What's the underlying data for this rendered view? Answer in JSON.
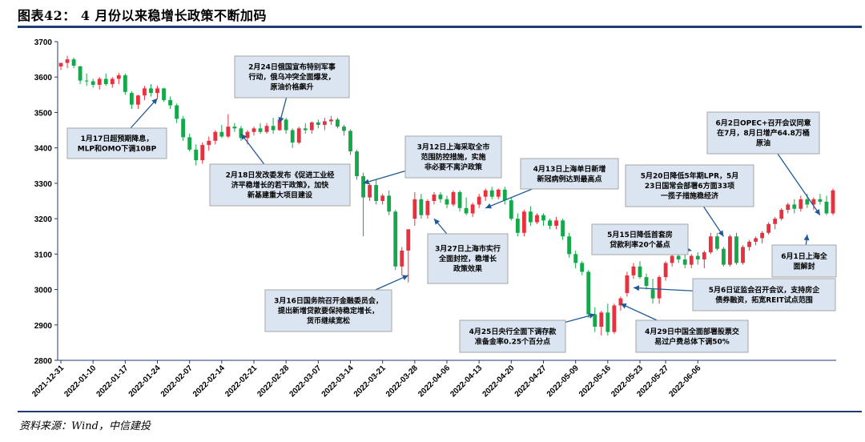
{
  "header": {
    "title": "图表42：  4 月份以来稳增长政策不断加码"
  },
  "footer": {
    "source": "资料来源：Wind，中信建投"
  },
  "colors": {
    "up": "#e8313f",
    "down": "#15a84a",
    "axis": "#1f3b73",
    "annotation_fill": "#dbe5f1",
    "arrow": "#1f5a96"
  },
  "chart_data": {
    "type": "candlestick",
    "ylim": [
      2800,
      3700
    ],
    "yticks": [
      2800,
      2900,
      3000,
      3100,
      3200,
      3300,
      3400,
      3500,
      3600,
      3700
    ],
    "grid": false,
    "xlabels": [
      "2021-12-31",
      "2022-01-10",
      "2022-01-17",
      "2022-01-24",
      "2022-02-07",
      "2022-02-14",
      "2022-02-21",
      "2022-02-28",
      "2022-03-07",
      "2022-03-14",
      "2022-03-21",
      "2022-03-28",
      "2022-04-06",
      "2022-04-13",
      "2022-04-20",
      "2022-04-27",
      "2022-05-09",
      "2022-05-16",
      "2022-05-23",
      "2022-05-27",
      "2022-06-06"
    ],
    "xlabel_index": [
      0,
      5,
      10,
      15,
      20,
      25,
      30,
      35,
      40,
      45,
      50,
      55,
      60,
      65,
      70,
      75,
      80,
      85,
      90,
      94,
      99
    ],
    "candles": [
      {
        "o": 3630,
        "h": 3640,
        "l": 3620,
        "c": 3640
      },
      {
        "o": 3640,
        "h": 3660,
        "l": 3625,
        "c": 3650
      },
      {
        "o": 3650,
        "h": 3655,
        "l": 3625,
        "c": 3632
      },
      {
        "o": 3630,
        "h": 3632,
        "l": 3580,
        "c": 3590
      },
      {
        "o": 3590,
        "h": 3610,
        "l": 3575,
        "c": 3588
      },
      {
        "o": 3588,
        "h": 3595,
        "l": 3570,
        "c": 3578
      },
      {
        "o": 3578,
        "h": 3600,
        "l": 3565,
        "c": 3595
      },
      {
        "o": 3595,
        "h": 3610,
        "l": 3575,
        "c": 3580
      },
      {
        "o": 3580,
        "h": 3600,
        "l": 3570,
        "c": 3595
      },
      {
        "o": 3595,
        "h": 3612,
        "l": 3580,
        "c": 3605
      },
      {
        "o": 3605,
        "h": 3610,
        "l": 3550,
        "c": 3558
      },
      {
        "o": 3555,
        "h": 3560,
        "l": 3510,
        "c": 3522
      },
      {
        "o": 3522,
        "h": 3550,
        "l": 3510,
        "c": 3548
      },
      {
        "o": 3548,
        "h": 3575,
        "l": 3535,
        "c": 3568
      },
      {
        "o": 3568,
        "h": 3580,
        "l": 3545,
        "c": 3555
      },
      {
        "o": 3555,
        "h": 3575,
        "l": 3540,
        "c": 3568
      },
      {
        "o": 3568,
        "h": 3570,
        "l": 3530,
        "c": 3535
      },
      {
        "o": 3535,
        "h": 3545,
        "l": 3510,
        "c": 3520
      },
      {
        "o": 3520,
        "h": 3525,
        "l": 3470,
        "c": 3482
      },
      {
        "o": 3482,
        "h": 3490,
        "l": 3420,
        "c": 3430
      },
      {
        "o": 3430,
        "h": 3440,
        "l": 3390,
        "c": 3395
      },
      {
        "o": 3395,
        "h": 3410,
        "l": 3350,
        "c": 3365
      },
      {
        "o": 3365,
        "h": 3415,
        "l": 3355,
        "c": 3408
      },
      {
        "o": 3408,
        "h": 3432,
        "l": 3392,
        "c": 3420
      },
      {
        "o": 3420,
        "h": 3450,
        "l": 3410,
        "c": 3445
      },
      {
        "o": 3445,
        "h": 3465,
        "l": 3428,
        "c": 3432
      },
      {
        "o": 3432,
        "h": 3495,
        "l": 3428,
        "c": 3460
      },
      {
        "o": 3460,
        "h": 3470,
        "l": 3445,
        "c": 3455
      },
      {
        "o": 3455,
        "h": 3462,
        "l": 3420,
        "c": 3428
      },
      {
        "o": 3428,
        "h": 3450,
        "l": 3410,
        "c": 3445
      },
      {
        "o": 3445,
        "h": 3460,
        "l": 3435,
        "c": 3455
      },
      {
        "o": 3455,
        "h": 3470,
        "l": 3440,
        "c": 3445
      },
      {
        "o": 3445,
        "h": 3470,
        "l": 3440,
        "c": 3462
      },
      {
        "o": 3462,
        "h": 3485,
        "l": 3440,
        "c": 3450
      },
      {
        "o": 3450,
        "h": 3485,
        "l": 3448,
        "c": 3480
      },
      {
        "o": 3480,
        "h": 3485,
        "l": 3440,
        "c": 3450
      },
      {
        "o": 3450,
        "h": 3455,
        "l": 3400,
        "c": 3415
      },
      {
        "o": 3415,
        "h": 3460,
        "l": 3410,
        "c": 3455
      },
      {
        "o": 3455,
        "h": 3470,
        "l": 3440,
        "c": 3450
      },
      {
        "o": 3450,
        "h": 3475,
        "l": 3440,
        "c": 3472
      },
      {
        "o": 3472,
        "h": 3480,
        "l": 3455,
        "c": 3465
      },
      {
        "o": 3465,
        "h": 3485,
        "l": 3450,
        "c": 3475
      },
      {
        "o": 3475,
        "h": 3490,
        "l": 3465,
        "c": 3480
      },
      {
        "o": 3480,
        "h": 3485,
        "l": 3455,
        "c": 3460
      },
      {
        "o": 3460,
        "h": 3465,
        "l": 3435,
        "c": 3448
      },
      {
        "o": 3448,
        "h": 3452,
        "l": 3380,
        "c": 3390
      },
      {
        "o": 3390,
        "h": 3395,
        "l": 3310,
        "c": 3320
      },
      {
        "o": 3320,
        "h": 3330,
        "l": 3150,
        "c": 3260
      },
      {
        "o": 3260,
        "h": 3300,
        "l": 3250,
        "c": 3295
      },
      {
        "o": 3295,
        "h": 3310,
        "l": 3240,
        "c": 3250
      },
      {
        "o": 3250,
        "h": 3270,
        "l": 3240,
        "c": 3265
      },
      {
        "o": 3265,
        "h": 3280,
        "l": 3210,
        "c": 3220
      },
      {
        "o": 3220,
        "h": 3225,
        "l": 3055,
        "c": 3065
      },
      {
        "o": 3065,
        "h": 3120,
        "l": 3040,
        "c": 3110
      },
      {
        "o": 3110,
        "h": 3170,
        "l": 3020,
        "c": 3170
      },
      {
        "o": 3200,
        "h": 3275,
        "l": 3180,
        "c": 3255
      },
      {
        "o": 3255,
        "h": 3270,
        "l": 3200,
        "c": 3210
      },
      {
        "o": 3210,
        "h": 3255,
        "l": 3200,
        "c": 3250
      },
      {
        "o": 3250,
        "h": 3275,
        "l": 3240,
        "c": 3268
      },
      {
        "o": 3268,
        "h": 3275,
        "l": 3245,
        "c": 3255
      },
      {
        "o": 3255,
        "h": 3265,
        "l": 3230,
        "c": 3240
      },
      {
        "o": 3240,
        "h": 3280,
        "l": 3235,
        "c": 3275
      },
      {
        "o": 3275,
        "h": 3280,
        "l": 3220,
        "c": 3230
      },
      {
        "o": 3230,
        "h": 3260,
        "l": 3210,
        "c": 3215
      },
      {
        "o": 3215,
        "h": 3245,
        "l": 3205,
        "c": 3240
      },
      {
        "o": 3240,
        "h": 3270,
        "l": 3230,
        "c": 3262
      },
      {
        "o": 3262,
        "h": 3285,
        "l": 3250,
        "c": 3280
      },
      {
        "o": 3280,
        "h": 3290,
        "l": 3255,
        "c": 3262
      },
      {
        "o": 3262,
        "h": 3285,
        "l": 3255,
        "c": 3282
      },
      {
        "o": 3282,
        "h": 3290,
        "l": 3240,
        "c": 3252
      },
      {
        "o": 3252,
        "h": 3260,
        "l": 3195,
        "c": 3200
      },
      {
        "o": 3200,
        "h": 3215,
        "l": 3150,
        "c": 3160
      },
      {
        "o": 3160,
        "h": 3225,
        "l": 3150,
        "c": 3220
      },
      {
        "o": 3220,
        "h": 3235,
        "l": 3180,
        "c": 3190
      },
      {
        "o": 3190,
        "h": 3215,
        "l": 3185,
        "c": 3210
      },
      {
        "o": 3210,
        "h": 3215,
        "l": 3180,
        "c": 3195
      },
      {
        "o": 3195,
        "h": 3200,
        "l": 3170,
        "c": 3180
      },
      {
        "o": 3180,
        "h": 3205,
        "l": 3170,
        "c": 3195
      },
      {
        "o": 3195,
        "h": 3200,
        "l": 3140,
        "c": 3150
      },
      {
        "o": 3150,
        "h": 3160,
        "l": 3090,
        "c": 3100
      },
      {
        "o": 3100,
        "h": 3110,
        "l": 3060,
        "c": 3075
      },
      {
        "o": 3075,
        "h": 3080,
        "l": 3040,
        "c": 3050
      },
      {
        "o": 3050,
        "h": 3055,
        "l": 2920,
        "c": 2930
      },
      {
        "o": 2930,
        "h": 2950,
        "l": 2880,
        "c": 2895
      },
      {
        "o": 2895,
        "h": 2940,
        "l": 2870,
        "c": 2935
      },
      {
        "o": 2935,
        "h": 2960,
        "l": 2870,
        "c": 2880
      },
      {
        "o": 2880,
        "h": 2960,
        "l": 2875,
        "c": 2955
      },
      {
        "o": 2955,
        "h": 2980,
        "l": 2940,
        "c": 2975
      },
      {
        "o": 2990,
        "h": 3050,
        "l": 2980,
        "c": 3040
      },
      {
        "o": 3040,
        "h": 3075,
        "l": 3030,
        "c": 3065
      },
      {
        "o": 3065,
        "h": 3080,
        "l": 3030,
        "c": 3035
      },
      {
        "o": 3035,
        "h": 3045,
        "l": 3000,
        "c": 3010
      },
      {
        "o": 3000,
        "h": 3030,
        "l": 2960,
        "c": 2975
      },
      {
        "o": 2975,
        "h": 3040,
        "l": 2960,
        "c": 3035
      },
      {
        "o": 3035,
        "h": 3080,
        "l": 3025,
        "c": 3075
      },
      {
        "o": 3075,
        "h": 3105,
        "l": 3065,
        "c": 3095
      },
      {
        "o": 3095,
        "h": 3110,
        "l": 3075,
        "c": 3085
      },
      {
        "o": 3085,
        "h": 3110,
        "l": 3060,
        "c": 3070
      },
      {
        "o": 3070,
        "h": 3100,
        "l": 3060,
        "c": 3095
      },
      {
        "o": 3095,
        "h": 3105,
        "l": 3070,
        "c": 3085
      },
      {
        "o": 3085,
        "h": 3110,
        "l": 3060,
        "c": 3105
      },
      {
        "o": 3105,
        "h": 3160,
        "l": 3100,
        "c": 3150
      },
      {
        "o": 3150,
        "h": 3160,
        "l": 3110,
        "c": 3115
      },
      {
        "o": 3115,
        "h": 3120,
        "l": 3065,
        "c": 3070
      },
      {
        "o": 3070,
        "h": 3155,
        "l": 3065,
        "c": 3150
      },
      {
        "o": 3150,
        "h": 3160,
        "l": 3070,
        "c": 3075
      },
      {
        "o": 3075,
        "h": 3125,
        "l": 3070,
        "c": 3120
      },
      {
        "o": 3120,
        "h": 3140,
        "l": 3110,
        "c": 3135
      },
      {
        "o": 3135,
        "h": 3150,
        "l": 3125,
        "c": 3145
      },
      {
        "o": 3145,
        "h": 3165,
        "l": 3130,
        "c": 3160
      },
      {
        "o": 3160,
        "h": 3190,
        "l": 3155,
        "c": 3185
      },
      {
        "o": 3185,
        "h": 3205,
        "l": 3170,
        "c": 3200
      },
      {
        "o": 3200,
        "h": 3230,
        "l": 3195,
        "c": 3225
      },
      {
        "o": 3225,
        "h": 3245,
        "l": 3215,
        "c": 3240
      },
      {
        "o": 3240,
        "h": 3255,
        "l": 3215,
        "c": 3228
      },
      {
        "o": 3228,
        "h": 3265,
        "l": 3220,
        "c": 3255
      },
      {
        "o": 3255,
        "h": 3270,
        "l": 3230,
        "c": 3240
      },
      {
        "o": 3240,
        "h": 3260,
        "l": 3225,
        "c": 3255
      },
      {
        "o": 3255,
        "h": 3270,
        "l": 3240,
        "c": 3248
      },
      {
        "o": 3248,
        "h": 3265,
        "l": 3210,
        "c": 3215
      },
      {
        "o": 3215,
        "h": 3285,
        "l": 3210,
        "c": 3280
      }
    ],
    "annotations": [
      {
        "id": "jan17",
        "lines": [
          "1月17日超预期降息，",
          "MLP和OMO下调10BP"
        ],
        "target": [
          15,
          3540
        ]
      },
      {
        "id": "feb24",
        "lines": [
          "2月24日俄国宣布特别军事",
          "行动，俄乌冲突全面爆发，",
          "原油价格飙升"
        ],
        "target": [
          34,
          3470
        ]
      },
      {
        "id": "feb18",
        "lines": [
          "2月18日发改委发布《促进工业经",
          "济平稳增长的若干政策》，加快",
          "新基建重大项目建设"
        ],
        "target": [
          28,
          3440
        ]
      },
      {
        "id": "mar12",
        "lines": [
          "3月12日上海采取全市",
          "范围防控措施，实施",
          "非必要不离沪政策"
        ],
        "target": [
          47,
          3300
        ]
      },
      {
        "id": "apr13",
        "lines": [
          "4月13日上海单日新增",
          "新冠病例达到最高点"
        ],
        "target": [
          66,
          3230
        ]
      },
      {
        "id": "mar27",
        "lines": [
          "3月27日上海市实行",
          "全面封控，稳增长",
          "政策效果"
        ],
        "target": [
          58,
          3200
        ]
      },
      {
        "id": "mar16",
        "lines": [
          "3月16日国务院召开金融委员会，",
          "提出新增贷款要保持稳定增长，",
          "货币继续宽松"
        ],
        "target": [
          54,
          3040
        ]
      },
      {
        "id": "apr25",
        "lines": [
          "4月25日央行全面下调存款",
          "准备金率0.25个百分点"
        ],
        "target": [
          83,
          2930
        ]
      },
      {
        "id": "apr29",
        "lines": [
          "4月29日中国全面部署股票交",
          "易过户费总体下调50%"
        ],
        "target": [
          87,
          2960
        ]
      },
      {
        "id": "may15",
        "lines": [
          "5月15日降低首套房",
          "贷款利率20个基点"
        ],
        "target": [
          98,
          3110
        ]
      },
      {
        "id": "may20",
        "lines": [
          "5月20日降低5年期LPR，5月",
          "23日国常会部署6方面33项",
          "一揽子措施稳经济"
        ],
        "target": [
          103,
          3150
        ]
      },
      {
        "id": "may6",
        "lines": [
          "5月6日证监会召开会议，支持房企",
          "债券融资，拓宽REIT试点范围"
        ],
        "target": [
          89,
          3005
        ]
      },
      {
        "id": "jun2",
        "lines": [
          "6月2日OPEC+召开会议同意",
          "在7月，8月日增产64.8万桶",
          "原油"
        ],
        "target": [
          118,
          3210
        ]
      },
      {
        "id": "jun1",
        "lines": [
          "6月1日上海全",
          "面解封"
        ],
        "target": [
          116,
          3155
        ]
      }
    ]
  }
}
